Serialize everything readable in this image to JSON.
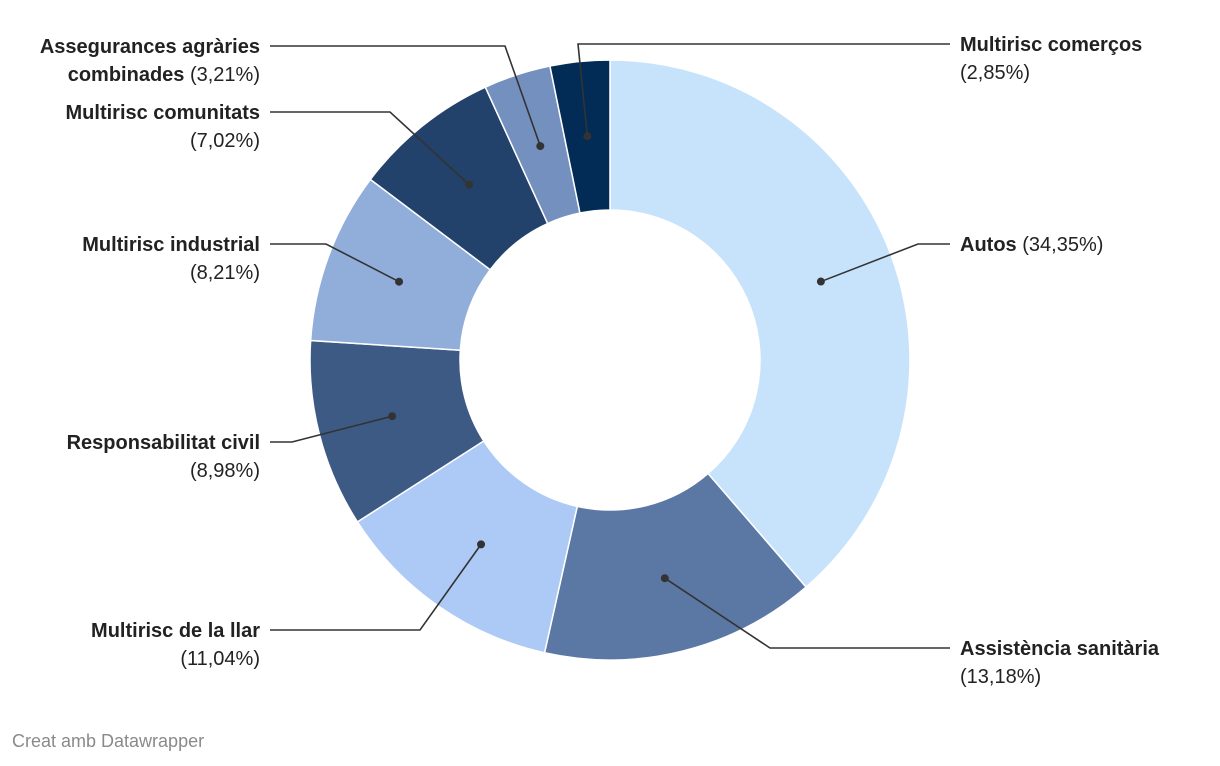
{
  "chart_data": {
    "type": "donut",
    "title": "",
    "slices": [
      {
        "label": "Autos",
        "value": 34.35,
        "value_label": "(34,35%)",
        "color": "#c7e3fb"
      },
      {
        "label": "Assistència sanitària",
        "value": 13.18,
        "value_label": "(13,18%)",
        "color": "#5b77a4"
      },
      {
        "label": "Multirisc de la llar",
        "value": 11.04,
        "value_label": "(11,04%)",
        "color": "#adc9f5"
      },
      {
        "label": "Responsabilitat civil",
        "value": 8.98,
        "value_label": "(8,98%)",
        "color": "#3d5a85"
      },
      {
        "label": "Multirisc industrial",
        "value": 8.21,
        "value_label": "(8,21%)",
        "color": "#91aedb"
      },
      {
        "label": "Multirisc comunitats",
        "value": 7.02,
        "value_label": "(7,02%)",
        "color": "#22416b"
      },
      {
        "label": "Assegurances agràries combinades",
        "value": 3.21,
        "value_label": "(3,21%)",
        "color": "#7390be"
      },
      {
        "label": "Multirisc comerços",
        "value": 2.85,
        "value_label": "(2,85%)",
        "color": "#022c55"
      }
    ]
  },
  "footer": {
    "credit": "Creat amb Datawrapper"
  }
}
